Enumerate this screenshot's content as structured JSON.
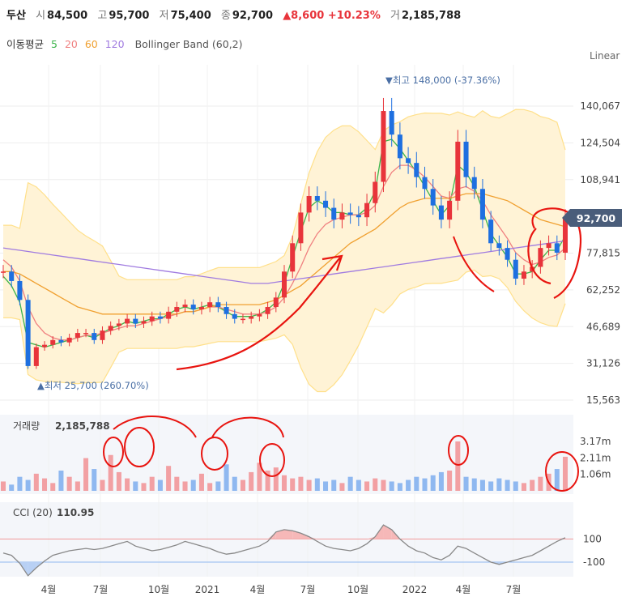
{
  "header": {
    "name": "두산",
    "open_label": "시",
    "open": "84,500",
    "high_label": "고",
    "high": "95,700",
    "low_label": "저",
    "low": "75,400",
    "close_label": "종",
    "close": "92,700",
    "change": "▲8,600 +10.23%",
    "vol_label": "거",
    "volume": "2,185,788"
  },
  "ma_legend": {
    "label": "이동평균",
    "p5": "5",
    "p20": "20",
    "p60": "60",
    "p120": "120",
    "bb": "Bollinger Band (60,2)"
  },
  "scale_mode": "Linear",
  "colors": {
    "up": "#e8343b",
    "down": "#1e6fe0",
    "ma5": "#3cb44b",
    "ma20": "#f08080",
    "ma60": "#f0a030",
    "ma120": "#a07be0",
    "bb_fill": "#fff3d6",
    "bb_line": "#ffe08a",
    "cci": "#888888",
    "annotation": "#e8140f"
  },
  "chart_data": [
    {
      "type": "candlestick",
      "title": "두산",
      "yscale": "linear",
      "ylim": [
        15563,
        155000
      ],
      "y_ticks": [
        "140,067",
        "124,504",
        "108,941",
        "77,815",
        "62,252",
        "46,689",
        "31,126",
        "15,563"
      ],
      "current_price_label": "92,700",
      "max_marker": "▼최고 148,000 (-37.36%)",
      "min_marker": "▲최저 25,700 (260.70%)",
      "x_ticks": [
        "4월",
        "7월",
        "10월",
        "2021",
        "4월",
        "7월",
        "10월",
        "2022",
        "4월",
        "7월"
      ],
      "series": [
        {
          "name": "Close",
          "values": [
            70000,
            66000,
            58000,
            30000,
            38000,
            39000,
            41000,
            40000,
            42000,
            44000,
            44000,
            41000,
            45000,
            47000,
            48000,
            50000,
            48000,
            49000,
            51000,
            50000,
            53000,
            55000,
            56000,
            54000,
            55000,
            57000,
            55000,
            52000,
            50000,
            50000,
            51000,
            52000,
            55000,
            59000,
            70000,
            82000,
            95000,
            102000,
            100000,
            97000,
            92000,
            95000,
            94000,
            93000,
            99000,
            108000,
            138000,
            128000,
            118000,
            116000,
            110000,
            105000,
            98000,
            92000,
            100000,
            125000,
            110000,
            105000,
            92000,
            82000,
            80000,
            75000,
            67000,
            70000,
            72000,
            80000,
            82000,
            78000,
            92700
          ]
        },
        {
          "name": "MA5",
          "values": [
            68000,
            64000,
            57000,
            40000,
            39000,
            38000,
            39000,
            40000,
            41000,
            42000,
            43000,
            42000,
            44000,
            46000,
            47000,
            49000,
            48000,
            49000,
            50000,
            50000,
            52000,
            54000,
            55000,
            54000,
            55000,
            56000,
            55000,
            53000,
            51000,
            51000,
            51000,
            52000,
            54000,
            57000,
            65000,
            76000,
            87000,
            97000,
            100000,
            98000,
            95000,
            95000,
            94000,
            94000,
            97000,
            104000,
            125000,
            126000,
            122000,
            117000,
            112000,
            106000,
            100000,
            94000,
            98000,
            115000,
            112000,
            106000,
            96000,
            86000,
            81000,
            76000,
            69000,
            69000,
            70000,
            75000,
            79000,
            79000,
            85000
          ]
        },
        {
          "name": "MA20",
          "values": [
            75000,
            72000,
            66000,
            55000,
            48000,
            44000,
            42000,
            41000,
            41000,
            42000,
            43000,
            43000,
            44000,
            45000,
            46000,
            47000,
            47000,
            48000,
            49000,
            50000,
            51000,
            52000,
            53000,
            53000,
            54000,
            55000,
            55000,
            54000,
            53000,
            52000,
            52000,
            52000,
            53000,
            55000,
            59000,
            65000,
            72000,
            80000,
            86000,
            90000,
            92000,
            93000,
            94000,
            94000,
            95000,
            98000,
            106000,
            112000,
            115000,
            115000,
            113000,
            110000,
            106000,
            102000,
            101000,
            105000,
            106000,
            104000,
            100000,
            94000,
            89000,
            84000,
            78000,
            75000,
            73000,
            74000,
            76000,
            77000,
            80000
          ]
        },
        {
          "name": "MA60",
          "values": [
            70000,
            70000,
            69000,
            67000,
            65000,
            63000,
            61000,
            59000,
            57000,
            55000,
            54000,
            53000,
            52000,
            52000,
            52000,
            52000,
            52000,
            52000,
            52000,
            52000,
            52000,
            52000,
            53000,
            53000,
            54000,
            55000,
            56000,
            56000,
            56000,
            56000,
            56000,
            56000,
            57000,
            58000,
            60000,
            62000,
            64000,
            67000,
            70000,
            73000,
            76000,
            79000,
            82000,
            84000,
            86000,
            88000,
            91000,
            94000,
            97000,
            99000,
            100000,
            101000,
            101000,
            101000,
            101000,
            102000,
            103000,
            103000,
            103000,
            102000,
            101000,
            100000,
            98000,
            96000,
            94000,
            92000,
            91000,
            90000,
            89000
          ]
        },
        {
          "name": "MA120",
          "values": [
            80000,
            79500,
            79000,
            78500,
            78000,
            77500,
            77000,
            76500,
            76000,
            75500,
            75000,
            74500,
            74000,
            73500,
            73000,
            72500,
            72000,
            71500,
            71000,
            70500,
            70000,
            69500,
            69000,
            68500,
            68000,
            67500,
            67000,
            66500,
            66000,
            65500,
            65000,
            65000,
            65000,
            65500,
            66000,
            66500,
            67000,
            67500,
            68000,
            68500,
            69000,
            69500,
            70000,
            70500,
            71000,
            71500,
            72000,
            72500,
            73000,
            73500,
            74000,
            74500,
            75000,
            75500,
            76000,
            76500,
            77000,
            77500,
            78000,
            78500,
            79000,
            79500,
            80000,
            80500,
            81000,
            81500,
            82000,
            82500,
            83000
          ]
        }
      ]
    },
    {
      "type": "bar",
      "title": "거래량",
      "value_label": "2,185,788",
      "y_ticks": [
        "3.17m",
        "2.11m",
        "1.06m"
      ],
      "ylim": [
        0,
        3800000
      ],
      "values": [
        600000,
        400000,
        900000,
        700000,
        1100000,
        800000,
        500000,
        1300000,
        900000,
        600000,
        2100000,
        1400000,
        700000,
        2300000,
        1200000,
        800000,
        600000,
        500000,
        900000,
        700000,
        1600000,
        900000,
        600000,
        700000,
        1100000,
        500000,
        600000,
        1700000,
        900000,
        700000,
        1200000,
        1800000,
        1300000,
        1500000,
        1000000,
        800000,
        900000,
        700000,
        800000,
        600000,
        700000,
        500000,
        900000,
        700000,
        600000,
        800000,
        700000,
        600000,
        500000,
        700000,
        900000,
        800000,
        1000000,
        1200000,
        1300000,
        3170000,
        900000,
        800000,
        700000,
        600000,
        800000,
        700000,
        600000,
        500000,
        700000,
        900000,
        1100000,
        1400000,
        2185788
      ]
    },
    {
      "type": "line",
      "title": "CCI (20)",
      "value_label": "110.95",
      "reference_lines": [
        "100",
        "-100"
      ],
      "ylim": [
        -300,
        300
      ],
      "values": [
        -20,
        -40,
        -110,
        -220,
        -150,
        -90,
        -40,
        -20,
        0,
        10,
        20,
        10,
        20,
        40,
        60,
        80,
        40,
        20,
        0,
        10,
        30,
        50,
        80,
        60,
        40,
        20,
        -10,
        -30,
        -20,
        0,
        20,
        40,
        80,
        160,
        180,
        170,
        150,
        120,
        80,
        40,
        20,
        10,
        0,
        20,
        60,
        120,
        220,
        180,
        100,
        40,
        0,
        -20,
        -60,
        -80,
        -40,
        40,
        20,
        -20,
        -60,
        -100,
        -120,
        -100,
        -80,
        -60,
        -40,
        0,
        40,
        80,
        110.95
      ]
    }
  ]
}
